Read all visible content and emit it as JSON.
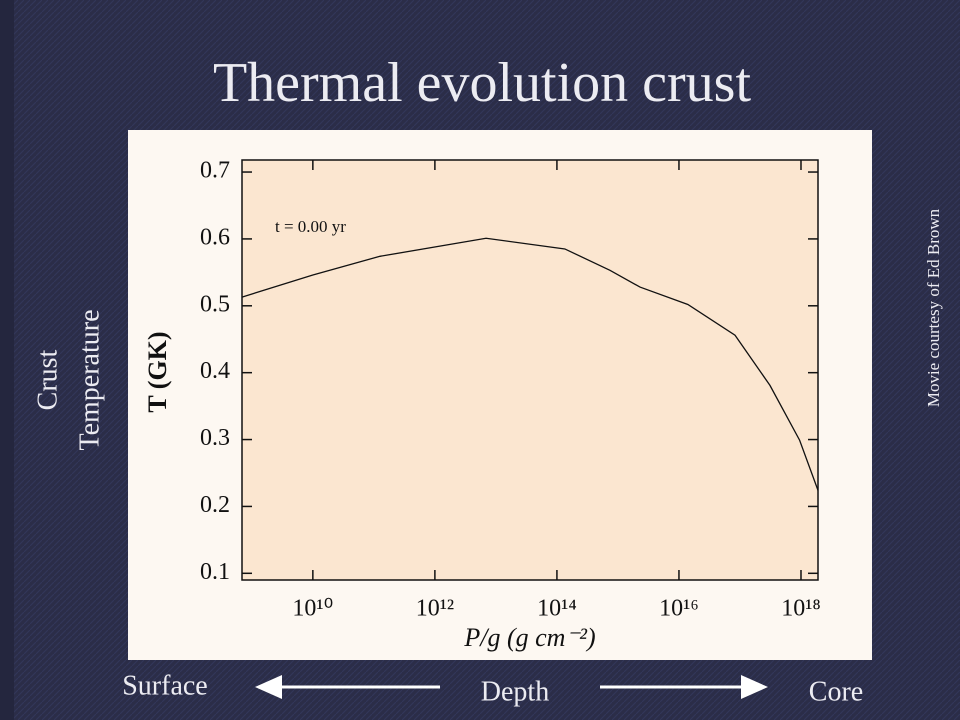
{
  "slide": {
    "title": "Thermal evolution crust",
    "side_label_1": "Crust",
    "side_label_2": "Temperature",
    "credit": "Movie courtesy of Ed Brown",
    "left_label": "Surface",
    "center_label": "Depth",
    "right_label": "Core"
  },
  "chart_data": {
    "type": "line",
    "x_label": "P/g (g cm⁻²)",
    "y_label": "T (GK)",
    "annotation": "t =   0.00 yr",
    "xscale": "log",
    "x": [
      690000000.0,
      10000000000.0,
      126000000000.0,
      6900000000000.0,
      135000000000000.0,
      740000000000000.0,
      2300000000000000.0,
      1.4e+16,
      8.3e+16,
      3.1e+17,
      9.5e+17,
      1.9e+18
    ],
    "series": [
      {
        "color": "#111111",
        "values": [
          0.513,
          0.546,
          0.574,
          0.601,
          0.585,
          0.553,
          0.528,
          0.502,
          0.456,
          0.381,
          0.299,
          0.224
        ]
      }
    ],
    "xlim": [
      690000000.0,
      1.9e+18
    ],
    "xticks": [
      {
        "value": 10000000000.0,
        "label": "10¹⁰"
      },
      {
        "value": 1000000000000.0,
        "label": "10¹²"
      },
      {
        "value": 100000000000000.0,
        "label": "10¹⁴"
      },
      {
        "value": 1e+16,
        "label": "10¹⁶"
      },
      {
        "value": 1e+18,
        "label": "10¹⁸"
      }
    ],
    "ylim": [
      0.09,
      0.718
    ],
    "yticks": [
      0.1,
      0.2,
      0.3,
      0.4,
      0.5,
      0.6,
      0.7
    ]
  }
}
